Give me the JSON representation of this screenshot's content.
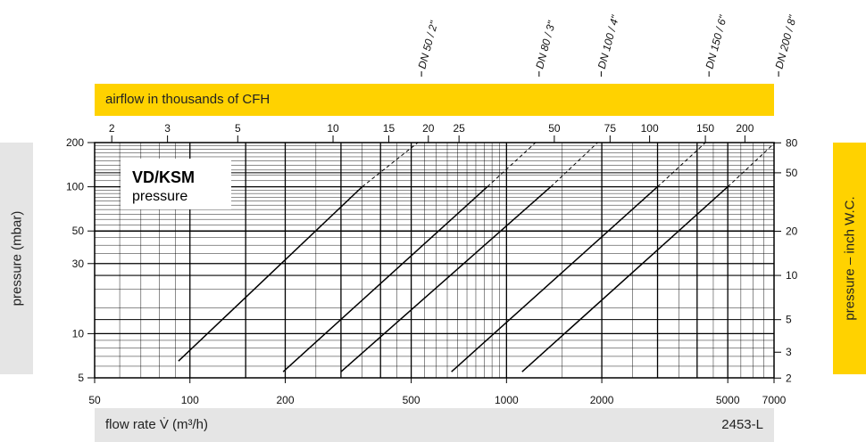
{
  "chart_data": {
    "type": "line",
    "title": "VD/KSM",
    "subtitle": "pressure",
    "code": "2453-L",
    "xlabel": "flow rate V̇ (m³/h)",
    "ylabel": "pressure (mbar)",
    "x2label": "airflow in thousands of CFH",
    "y2label": "pressure – inch W.C.",
    "x_scale": "log",
    "y_scale": "log",
    "xlim": [
      50,
      7000
    ],
    "ylim": [
      5,
      200
    ],
    "x_ticks": [
      "50",
      "100",
      "200",
      "500",
      "1000",
      "2000",
      "5000",
      "7000"
    ],
    "y_ticks": [
      "5",
      "10",
      "30",
      "50",
      "100",
      "200"
    ],
    "x2_ticks": [
      "2",
      "3",
      "5",
      "10",
      "15",
      "20",
      "25",
      "50",
      "75",
      "100",
      "150",
      "200"
    ],
    "y2_ticks": [
      "2",
      "3",
      "5",
      "10",
      "20",
      "50",
      "80"
    ],
    "series": [
      {
        "name": "DN 50 / 2\"",
        "points": [
          [
            92,
            6.5
          ],
          [
            350,
            100
          ],
          [
            525,
            200
          ]
        ]
      },
      {
        "name": "DN 80 / 3\"",
        "points": [
          [
            197,
            5.5
          ],
          [
            870,
            100
          ],
          [
            1235,
            200
          ]
        ]
      },
      {
        "name": "DN 100 / 4\"",
        "points": [
          [
            300,
            5.5
          ],
          [
            1380,
            100
          ],
          [
            1940,
            200
          ]
        ]
      },
      {
        "name": "DN 150 / 6\"",
        "points": [
          [
            670,
            5.5
          ],
          [
            3000,
            100
          ],
          [
            4250,
            200
          ]
        ]
      },
      {
        "name": "DN 200 / 8\"",
        "points": [
          [
            1120,
            5.5
          ],
          [
            5000,
            100
          ],
          [
            7050,
            200
          ]
        ]
      }
    ],
    "grid": true,
    "legend": "top"
  }
}
